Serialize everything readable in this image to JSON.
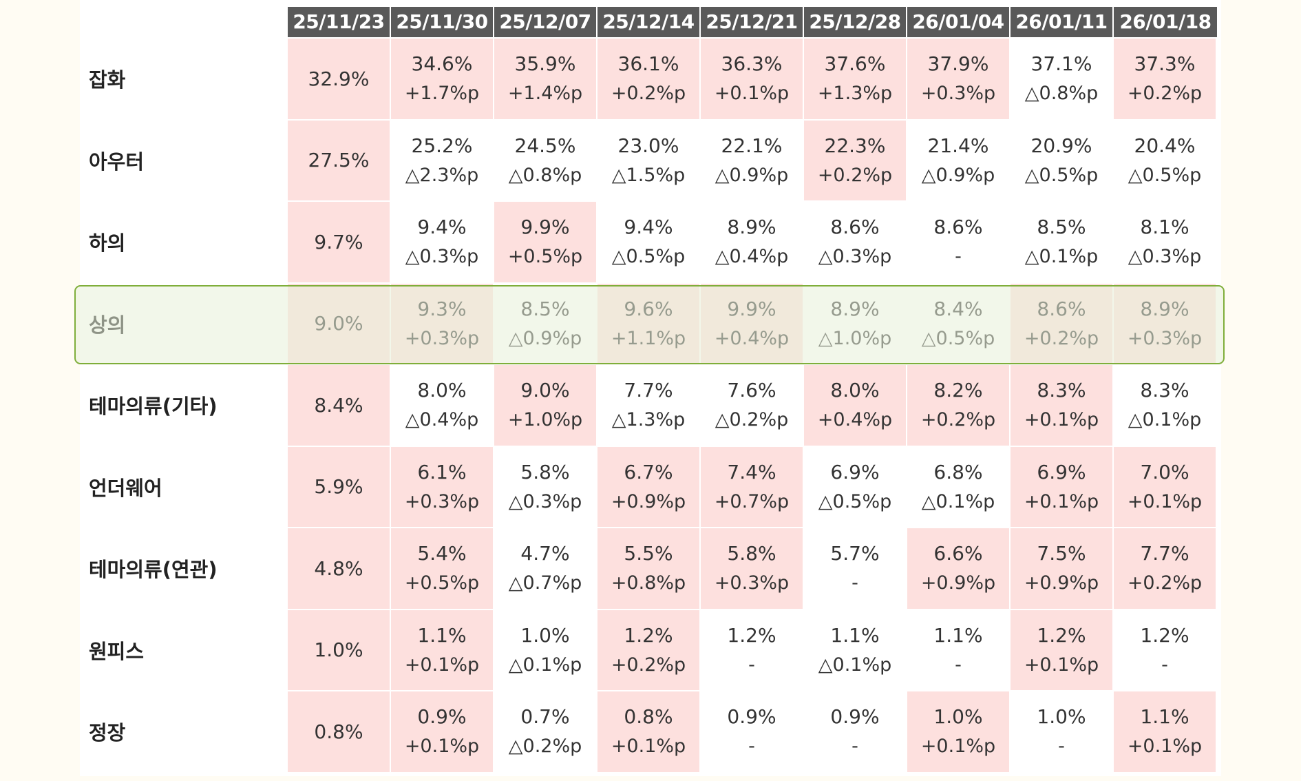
{
  "chart_data": {
    "type": "table",
    "columns": [
      "25/11/23",
      "25/11/30",
      "25/12/07",
      "25/12/14",
      "25/12/21",
      "25/12/28",
      "26/01/04",
      "26/01/11",
      "26/01/18"
    ],
    "highlighted_row": "상의",
    "rows": [
      {
        "label": "잡화",
        "values": [
          "32.9%",
          "34.6%",
          "35.9%",
          "36.1%",
          "36.3%",
          "37.6%",
          "37.9%",
          "37.1%",
          "37.3%"
        ],
        "deltas": [
          "",
          "+1.7%p",
          "+1.4%p",
          "+0.2%p",
          "+0.1%p",
          "+1.3%p",
          "+0.3%p",
          "△0.8%p",
          "+0.2%p"
        ]
      },
      {
        "label": "아우터",
        "values": [
          "27.5%",
          "25.2%",
          "24.5%",
          "23.0%",
          "22.1%",
          "22.3%",
          "21.4%",
          "20.9%",
          "20.4%"
        ],
        "deltas": [
          "",
          "△2.3%p",
          "△0.8%p",
          "△1.5%p",
          "△0.9%p",
          "+0.2%p",
          "△0.9%p",
          "△0.5%p",
          "△0.5%p"
        ]
      },
      {
        "label": "하의",
        "values": [
          "9.7%",
          "9.4%",
          "9.9%",
          "9.4%",
          "8.9%",
          "8.6%",
          "8.6%",
          "8.5%",
          "8.1%"
        ],
        "deltas": [
          "",
          "△0.3%p",
          "+0.5%p",
          "△0.5%p",
          "△0.4%p",
          "△0.3%p",
          "-",
          "△0.1%p",
          "△0.3%p"
        ]
      },
      {
        "label": "상의",
        "values": [
          "9.0%",
          "9.3%",
          "8.5%",
          "9.6%",
          "9.9%",
          "8.9%",
          "8.4%",
          "8.6%",
          "8.9%"
        ],
        "deltas": [
          "",
          "+0.3%p",
          "△0.9%p",
          "+1.1%p",
          "+0.4%p",
          "△1.0%p",
          "△0.5%p",
          "+0.2%p",
          "+0.3%p"
        ]
      },
      {
        "label": "테마의류(기타)",
        "values": [
          "8.4%",
          "8.0%",
          "9.0%",
          "7.7%",
          "7.6%",
          "8.0%",
          "8.2%",
          "8.3%",
          "8.3%"
        ],
        "deltas": [
          "",
          "△0.4%p",
          "+1.0%p",
          "△1.3%p",
          "△0.2%p",
          "+0.4%p",
          "+0.2%p",
          "+0.1%p",
          "△0.1%p"
        ]
      },
      {
        "label": "언더웨어",
        "values": [
          "5.9%",
          "6.1%",
          "5.8%",
          "6.7%",
          "7.4%",
          "6.9%",
          "6.8%",
          "6.9%",
          "7.0%"
        ],
        "deltas": [
          "",
          "+0.3%p",
          "△0.3%p",
          "+0.9%p",
          "+0.7%p",
          "△0.5%p",
          "△0.1%p",
          "+0.1%p",
          "+0.1%p"
        ]
      },
      {
        "label": "테마의류(연관)",
        "values": [
          "4.8%",
          "5.4%",
          "4.7%",
          "5.5%",
          "5.8%",
          "5.7%",
          "6.6%",
          "7.5%",
          "7.7%"
        ],
        "deltas": [
          "",
          "+0.5%p",
          "△0.7%p",
          "+0.8%p",
          "+0.3%p",
          "-",
          "+0.9%p",
          "+0.9%p",
          "+0.2%p"
        ]
      },
      {
        "label": "원피스",
        "values": [
          "1.0%",
          "1.1%",
          "1.0%",
          "1.2%",
          "1.2%",
          "1.1%",
          "1.1%",
          "1.2%",
          "1.2%"
        ],
        "deltas": [
          "",
          "+0.1%p",
          "△0.1%p",
          "+0.2%p",
          "-",
          "△0.1%p",
          "-",
          "+0.1%p",
          "-"
        ]
      },
      {
        "label": "정장",
        "values": [
          "0.8%",
          "0.9%",
          "0.7%",
          "0.8%",
          "0.9%",
          "0.9%",
          "1.0%",
          "1.0%",
          "1.1%"
        ],
        "deltas": [
          "",
          "+0.1%p",
          "△0.2%p",
          "+0.1%p",
          "-",
          "-",
          "+0.1%p",
          "-",
          "+0.1%p"
        ]
      }
    ]
  }
}
